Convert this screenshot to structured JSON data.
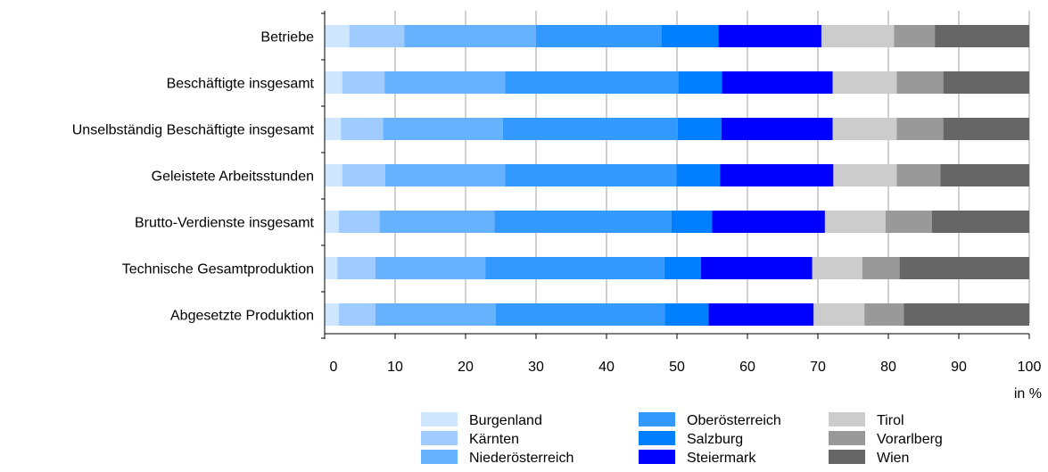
{
  "chart_data": {
    "type": "bar",
    "orientation": "horizontal",
    "stacked": true,
    "categories": [
      "Betriebe",
      "Beschäftigte insgesamt",
      "Unselbständig Beschäftigte insgesamt",
      "Geleistete Arbeitsstunden",
      "Brutto-Verdienste insgesamt",
      "Technische Gesamtproduktion",
      "Abgesetzte Produktion"
    ],
    "series": [
      {
        "name": "Burgenland",
        "color": "#cfe6ff",
        "values": [
          3.5,
          2.5,
          2.3,
          2.5,
          2.0,
          1.8,
          2.0
        ]
      },
      {
        "name": "Kärnten",
        "color": "#9fcbff",
        "values": [
          7.8,
          6.0,
          6.0,
          6.1,
          5.8,
          5.4,
          5.2
        ]
      },
      {
        "name": "Niederösterreich",
        "color": "#66b2ff",
        "values": [
          18.7,
          17.1,
          17.0,
          17.0,
          16.3,
          15.6,
          17.1
        ]
      },
      {
        "name": "Oberösterreich",
        "color": "#3399ff",
        "values": [
          17.8,
          24.6,
          24.8,
          24.3,
          25.1,
          25.4,
          24.0
        ]
      },
      {
        "name": "Salzburg",
        "color": "#0080ff",
        "values": [
          8.1,
          6.2,
          6.2,
          6.2,
          5.8,
          5.2,
          6.2
        ]
      },
      {
        "name": "Steiermark",
        "color": "#0000ff",
        "values": [
          14.6,
          15.7,
          15.8,
          16.1,
          16.0,
          15.8,
          14.9
        ]
      },
      {
        "name": "Tirol",
        "color": "#cccccc",
        "values": [
          10.3,
          9.1,
          9.1,
          9.0,
          8.6,
          7.1,
          7.2
        ]
      },
      {
        "name": "Vorarlberg",
        "color": "#999999",
        "values": [
          5.8,
          6.6,
          6.6,
          6.2,
          6.6,
          5.3,
          5.6
        ]
      },
      {
        "name": "Wien",
        "color": "#666666",
        "values": [
          13.4,
          12.2,
          12.2,
          12.6,
          13.8,
          18.4,
          17.8
        ]
      }
    ],
    "xlim": [
      0,
      100
    ],
    "xticks": [
      0,
      10,
      20,
      30,
      40,
      50,
      60,
      70,
      80,
      90,
      100
    ],
    "xunit": "in %",
    "grid": "vertical",
    "legend_position": "bottom"
  }
}
